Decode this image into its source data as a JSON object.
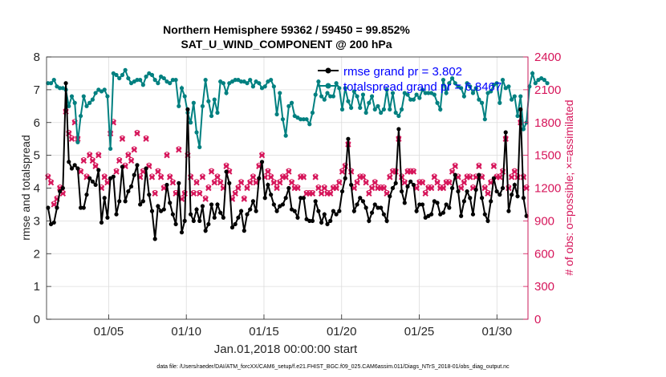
{
  "chart_data": {
    "type": "line",
    "title_line1": "Northern Hemisphere 59362 / 59450 = 99.852%",
    "title_line2": "SAT_U_WIND_COMPONENT @ 200 hPa",
    "xlabel": "Jan.01,2018 00:00:00 start",
    "ylabel_left": "rmse and totalspread",
    "ylabel_right": "# of obs: o=possible; ×=assimilated",
    "footer": "data file: /Users/raeder/DAI/ATM_forcXX/CAM6_setup/f.e21.FHIST_BGC.f09_025.CAM6assim.011/Diags_NTrS_2018-01/obs_diag_output.nc",
    "xlim": [
      1,
      32
    ],
    "ylim_left": [
      0,
      8
    ],
    "ylim_right": [
      0,
      2400
    ],
    "xticks": [
      5,
      10,
      15,
      20,
      25,
      30
    ],
    "xtick_labels": [
      "01/05",
      "01/10",
      "01/15",
      "01/20",
      "01/25",
      "01/30"
    ],
    "yticks_left": [
      0,
      1,
      2,
      3,
      4,
      5,
      6,
      7,
      8
    ],
    "yticks_right": [
      0,
      300,
      600,
      900,
      1200,
      1500,
      1800,
      2100,
      2400
    ],
    "legend": {
      "placement": "top-right",
      "entries": [
        {
          "label": "rmse grand pr = 3.802",
          "color": "#000000"
        },
        {
          "label": "totalspread grand pr = 6.8467",
          "color": "#008080"
        }
      ]
    },
    "colors": {
      "rmse": "#000000",
      "spread": "#008080",
      "obs": "#d6155a",
      "legend_text": "#0000ff"
    },
    "series": [
      {
        "name": "rmse",
        "values": [
          3.4,
          2.9,
          2.95,
          3.4,
          3.9,
          4.0,
          7.2,
          4.8,
          4.6,
          4.7,
          4.6,
          3.4,
          3.4,
          3.8,
          4.3,
          4.2,
          4.1,
          4.55,
          2.95,
          3.7,
          3.1,
          4.3,
          4.35,
          3.2,
          3.6,
          4.65,
          3.6,
          3.9,
          4.05,
          4.4,
          4.7,
          3.5,
          3.6,
          4.6,
          3.8,
          3.3,
          2.45,
          3.45,
          3.3,
          3.35,
          4.1,
          3.55,
          3.2,
          2.9,
          4.15,
          2.65,
          3.0,
          6.4,
          3.2,
          3.0,
          3.35,
          3.0,
          3.45,
          2.7,
          2.9,
          3.5,
          3.1,
          3.5,
          3.25,
          3.1,
          4.5,
          4.15,
          2.8,
          2.9,
          3.1,
          3.3,
          2.7,
          3.2,
          3.35,
          3.6,
          3.3,
          4.3,
          4.8,
          3.7,
          4.1,
          3.8,
          3.5,
          3.3,
          3.45,
          3.5,
          3.7,
          4.0,
          3.35,
          3.3,
          3.1,
          3.7,
          3.7,
          3.05,
          3.0,
          3.0,
          3.6,
          3.3,
          2.95,
          3.2,
          2.9,
          3.0,
          3.3,
          3.2,
          3.3,
          3.9,
          4.3,
          5.5,
          4.1,
          3.3,
          3.5,
          3.7,
          3.6,
          3.4,
          3.0,
          3.25,
          3.5,
          3.4,
          3.4,
          3.2,
          3.0,
          3.75,
          4.0,
          4.15,
          5.8,
          3.9,
          3.55,
          4.05,
          4.2,
          4.1,
          3.3,
          3.5,
          3.5,
          3.1,
          3.15,
          3.2,
          3.6,
          3.55,
          3.2,
          3.25,
          3.5,
          3.4,
          4.0,
          4.4,
          3.9,
          3.15,
          3.6,
          3.9,
          3.7,
          3.2,
          3.95,
          4.4,
          3.7,
          3.2,
          3.0,
          3.6,
          4.3,
          3.9,
          3.8,
          4.0,
          5.7,
          3.3,
          3.8,
          4.1,
          3.75,
          6.4,
          3.7,
          3.15
        ]
      },
      {
        "name": "totalspread",
        "values": [
          7.2,
          7.2,
          7.3,
          7.1,
          7.05,
          7.05,
          7.0,
          6.5,
          6.8,
          6.6,
          5.4,
          6.2,
          6.8,
          6.5,
          6.6,
          6.7,
          6.9,
          7.0,
          6.95,
          7.0,
          6.8,
          5.2,
          7.5,
          7.45,
          7.35,
          7.45,
          7.6,
          7.35,
          7.2,
          7.25,
          7.3,
          7.3,
          7.15,
          7.4,
          7.5,
          7.45,
          7.3,
          7.2,
          7.4,
          7.35,
          7.25,
          7.2,
          7.3,
          7.3,
          6.5,
          7.05,
          6.8,
          6.3,
          6.0,
          6.6,
          5.7,
          5.25,
          6.5,
          7.3,
          6.65,
          6.2,
          6.7,
          6.3,
          7.25,
          7.2,
          6.9,
          7.2,
          7.25,
          7.3,
          7.3,
          7.25,
          7.25,
          7.2,
          7.3,
          7.1,
          7.25,
          7.2,
          7.05,
          7.1,
          7.25,
          7.3,
          7.1,
          6.25,
          6.9,
          6.1,
          5.6,
          6.5,
          6.6,
          6.2,
          6.15,
          6.1,
          6.1,
          6.1,
          5.95,
          6.3,
          6.85,
          7.25,
          6.8,
          6.7,
          6.9,
          6.8,
          6.8,
          7.2,
          7.05,
          6.4,
          7.05,
          6.65,
          6.45,
          6.95,
          6.8,
          6.45,
          6.85,
          6.3,
          6.6,
          6.8,
          6.4,
          6.5,
          6.3,
          6.4,
          7.0,
          6.4,
          6.9,
          6.3,
          6.2,
          6.4,
          6.9,
          6.85,
          6.7,
          6.7,
          6.85,
          6.75,
          7.0,
          6.9,
          6.9,
          6.9,
          6.85,
          6.6,
          6.4,
          7.3,
          6.9,
          7.2,
          7.35,
          7.2,
          7.1,
          7.05,
          6.8,
          7.2,
          7.1,
          6.9,
          7.05,
          6.7,
          6.6,
          6.1,
          6.9,
          6.95,
          7.15,
          7.2,
          6.6,
          7.3,
          7.05,
          7.1,
          6.7,
          6.8,
          6.2,
          6.8,
          5.8,
          6.0,
          7.1,
          7.5,
          7.2,
          7.3,
          7.35,
          7.3,
          7.2
        ]
      }
    ],
    "obs_assimilated": [
      1300,
      1250,
      1050,
      1100,
      1200,
      1150,
      1900,
      1700,
      1650,
      1800,
      1650,
      1350,
      1450,
      1300,
      1500,
      1450,
      1400,
      1500,
      1200,
      1300,
      1250,
      1700,
      1800,
      1350,
      1450,
      1650,
      1400,
      1500,
      1450,
      1550,
      1700,
      1300,
      1350,
      1650,
      1400,
      1300,
      1150,
      1350,
      1300,
      1200,
      1500,
      1300,
      1250,
      1150,
      1550,
      1100,
      1150,
      1500,
      1300,
      1150,
      1250,
      1150,
      1300,
      1100,
      1200,
      1350,
      1250,
      1300,
      1250,
      1200,
      1400,
      1350,
      1100,
      1150,
      1200,
      1250,
      1100,
      1200,
      1250,
      1300,
      1250,
      1400,
      1500,
      1300,
      1350,
      1300,
      1250,
      1200,
      1250,
      1300,
      1300,
      1350,
      1250,
      1200,
      1200,
      1300,
      1300,
      1150,
      1150,
      1150,
      1300,
      1200,
      1150,
      1200,
      1150,
      1150,
      1200,
      1200,
      1250,
      1350,
      1400,
      1600,
      1350,
      1200,
      1250,
      1300,
      1300,
      1250,
      1150,
      1200,
      1250,
      1200,
      1200,
      1200,
      1150,
      1300,
      1350,
      1350,
      1650,
      1300,
      1250,
      1350,
      1350,
      1350,
      1200,
      1250,
      1250,
      1150,
      1200,
      1200,
      1300,
      1250,
      1200,
      1200,
      1250,
      1250,
      1350,
      1400,
      1300,
      1200,
      1250,
      1300,
      1300,
      1200,
      1300,
      1400,
      1300,
      1200,
      1150,
      1250,
      1400,
      1300,
      1300,
      1350,
      1650,
      1200,
      1300,
      1350,
      1300,
      1800,
      1300,
      1200
    ],
    "obs_possible": [
      1310,
      1260,
      1060,
      1110,
      1210,
      1160,
      1910,
      1710,
      1660,
      1810,
      1660,
      1360,
      1460,
      1310,
      1510,
      1460,
      1410,
      1510,
      1210,
      1310,
      1260,
      1710,
      1810,
      1360,
      1460,
      1660,
      1410,
      1510,
      1460,
      1560,
      1710,
      1310,
      1360,
      1660,
      1410,
      1310,
      1160,
      1360,
      1310,
      1210,
      1510,
      1310,
      1260,
      1160,
      1560,
      1110,
      1160,
      1510,
      1310,
      1160,
      1260,
      1160,
      1310,
      1110,
      1210,
      1360,
      1260,
      1310,
      1260,
      1210,
      1410,
      1360,
      1110,
      1160,
      1210,
      1260,
      1110,
      1210,
      1260,
      1310,
      1260,
      1410,
      1510,
      1310,
      1360,
      1310,
      1260,
      1210,
      1260,
      1310,
      1310,
      1360,
      1260,
      1210,
      1210,
      1310,
      1310,
      1160,
      1160,
      1160,
      1310,
      1210,
      1160,
      1210,
      1160,
      1160,
      1210,
      1210,
      1260,
      1360,
      1410,
      1610,
      1360,
      1210,
      1260,
      1310,
      1310,
      1260,
      1160,
      1210,
      1260,
      1210,
      1210,
      1210,
      1160,
      1310,
      1360,
      1360,
      1660,
      1310,
      1260,
      1360,
      1360,
      1360,
      1210,
      1260,
      1260,
      1160,
      1210,
      1210,
      1310,
      1260,
      1210,
      1210,
      1260,
      1260,
      1360,
      1410,
      1310,
      1210,
      1260,
      1310,
      1310,
      1210,
      1310,
      1410,
      1310,
      1210,
      1160,
      1260,
      1410,
      1310,
      1310,
      1360,
      1660,
      1210,
      1310,
      1360,
      1310,
      1810,
      1310,
      1210
    ]
  }
}
